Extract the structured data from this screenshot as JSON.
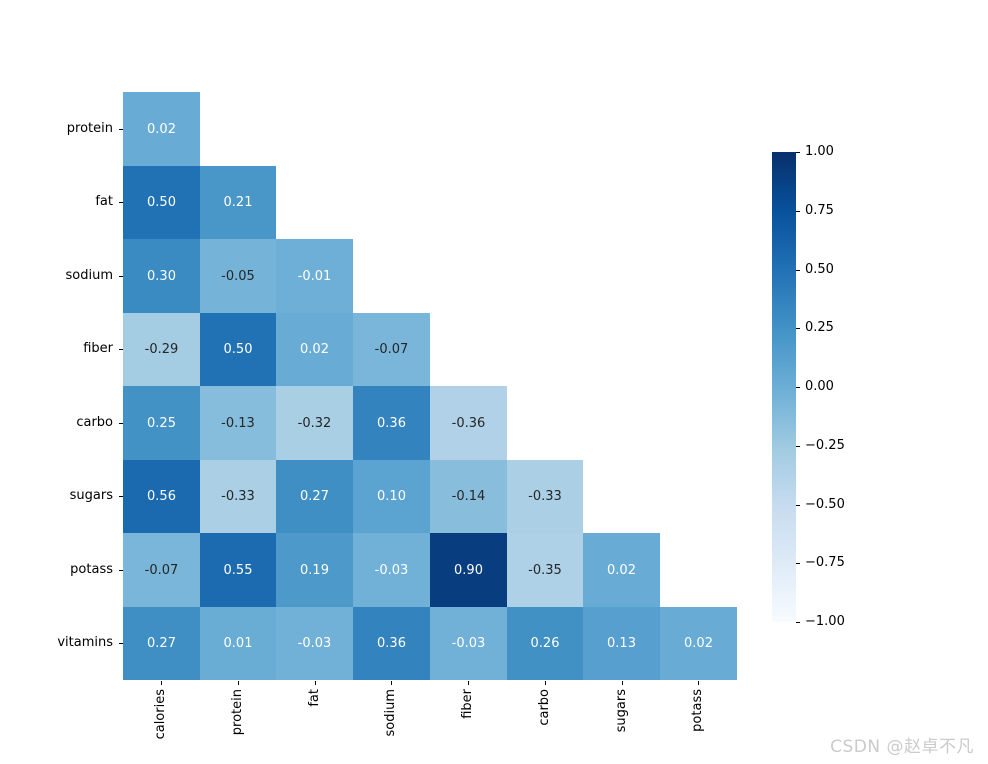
{
  "chart_data": {
    "type": "heatmap",
    "title": "",
    "description": "Lower-triangular correlation matrix heatmap (Blues colormap), upper triangle masked",
    "rows": [
      "protein",
      "fat",
      "sodium",
      "fiber",
      "carbo",
      "sugars",
      "potass",
      "vitamins"
    ],
    "columns": [
      "calories",
      "protein",
      "fat",
      "sodium",
      "fiber",
      "carbo",
      "sugars",
      "potass"
    ],
    "values": [
      [
        0.02
      ],
      [
        0.5,
        0.21
      ],
      [
        0.3,
        -0.05,
        -0.01
      ],
      [
        -0.29,
        0.5,
        0.02,
        -0.07
      ],
      [
        0.25,
        -0.13,
        -0.32,
        0.36,
        -0.36
      ],
      [
        0.56,
        -0.33,
        0.27,
        0.1,
        -0.14,
        -0.33
      ],
      [
        -0.07,
        0.55,
        0.19,
        -0.03,
        0.9,
        -0.35,
        0.02
      ],
      [
        0.27,
        0.01,
        -0.03,
        0.36,
        -0.03,
        0.26,
        0.13,
        0.02
      ]
    ],
    "vmin": -1,
    "vmax": 1,
    "annotation_decimals": 2,
    "grid": false,
    "legend_position": "colorbar-right",
    "colormap_name": "Blues",
    "colormap_stops": [
      "#f7fbff",
      "#deebf7",
      "#c6dbef",
      "#9ecae1",
      "#6baed6",
      "#4292c6",
      "#2171b5",
      "#08519c",
      "#08306b"
    ],
    "annotation_text_light": "#ffffff",
    "annotation_text_dark": "#262626",
    "colorbar_ticks": [
      {
        "value": 1.0,
        "label": "1.00"
      },
      {
        "value": 0.75,
        "label": "0.75"
      },
      {
        "value": 0.5,
        "label": "0.50"
      },
      {
        "value": 0.25,
        "label": "0.25"
      },
      {
        "value": 0.0,
        "label": "0.00"
      },
      {
        "value": -0.25,
        "label": "−0.25"
      },
      {
        "value": -0.5,
        "label": "−0.50"
      },
      {
        "value": -0.75,
        "label": "−0.75"
      },
      {
        "value": -1.0,
        "label": "−1.00"
      }
    ]
  },
  "watermark": {
    "text": "CSDN @赵卓不凡",
    "color": "#cbcbcb"
  }
}
